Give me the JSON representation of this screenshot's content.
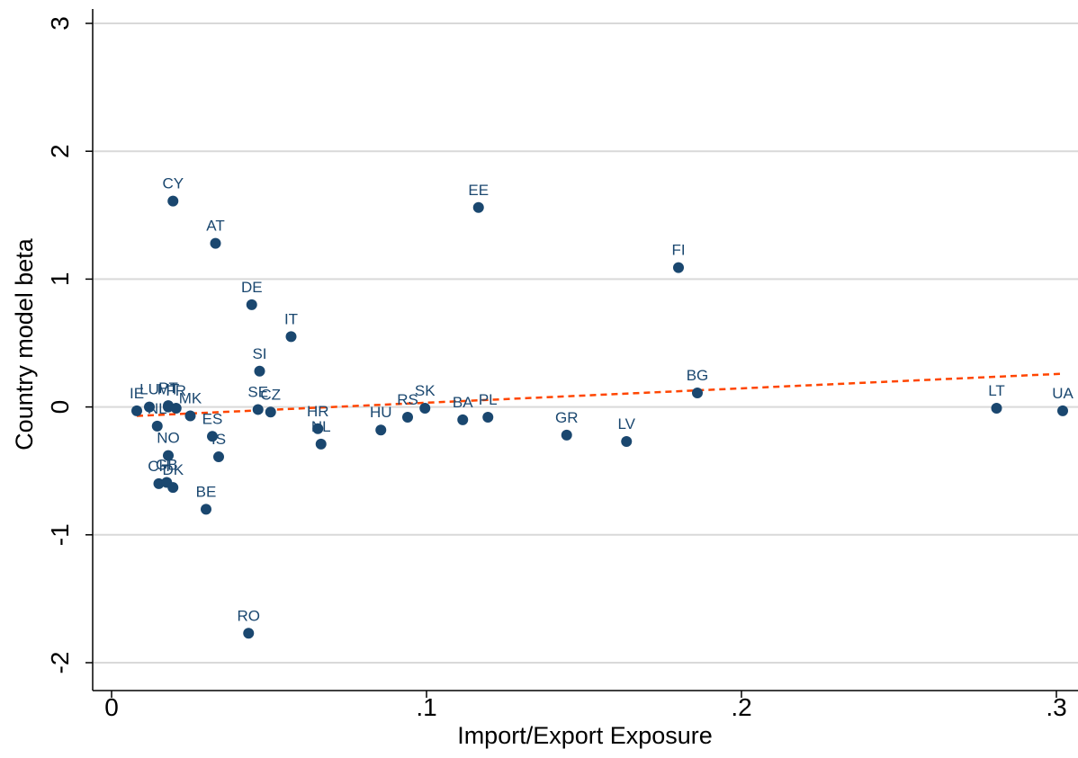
{
  "chart_data": {
    "type": "scatter",
    "title": "",
    "xlabel": "Import/Export Exposure",
    "ylabel": "Country model beta",
    "xlim": [
      0,
      0.3
    ],
    "ylim": [
      -2,
      3
    ],
    "x_ticks": [
      {
        "value": 0,
        "label": "0"
      },
      {
        "value": 0.1,
        "label": ".1"
      },
      {
        "value": 0.2,
        "label": ".2"
      },
      {
        "value": 0.3,
        "label": ".3"
      }
    ],
    "y_ticks": [
      {
        "value": -2,
        "label": "-2"
      },
      {
        "value": -1,
        "label": "-1"
      },
      {
        "value": 0,
        "label": "0"
      },
      {
        "value": 1,
        "label": "1"
      },
      {
        "value": 2,
        "label": "2"
      },
      {
        "value": 3,
        "label": "3"
      }
    ],
    "grid": "horizontal",
    "legend": "none",
    "colors": {
      "points": "#1a476f",
      "fit_line": "#ff4500",
      "grid": "#d9d9d9"
    },
    "points": [
      {
        "label": "IE",
        "x": 0.008,
        "y": -0.03
      },
      {
        "label": "LU",
        "x": 0.012,
        "y": 0.0
      },
      {
        "label": "NL",
        "x": 0.0145,
        "y": -0.15
      },
      {
        "label": "MT",
        "x": 0.018,
        "y": 0.0
      },
      {
        "label": "PT",
        "x": 0.018,
        "y": 0.01
      },
      {
        "label": "FR",
        "x": 0.0205,
        "y": -0.01
      },
      {
        "label": "MK",
        "x": 0.025,
        "y": -0.07
      },
      {
        "label": "NO",
        "x": 0.018,
        "y": -0.38
      },
      {
        "label": "CH",
        "x": 0.015,
        "y": -0.6
      },
      {
        "label": "GB",
        "x": 0.0175,
        "y": -0.59
      },
      {
        "label": "DK",
        "x": 0.0195,
        "y": -0.63
      },
      {
        "label": "CY",
        "x": 0.0195,
        "y": 1.61
      },
      {
        "label": "AT",
        "x": 0.033,
        "y": 1.28
      },
      {
        "label": "DE",
        "x": 0.0445,
        "y": 0.8
      },
      {
        "label": "SI",
        "x": 0.047,
        "y": 0.28
      },
      {
        "label": "IT",
        "x": 0.057,
        "y": 0.55
      },
      {
        "label": "SE",
        "x": 0.0465,
        "y": -0.02
      },
      {
        "label": "CZ",
        "x": 0.0505,
        "y": -0.04
      },
      {
        "label": "ES",
        "x": 0.032,
        "y": -0.23
      },
      {
        "label": "IS",
        "x": 0.034,
        "y": -0.39
      },
      {
        "label": "BE",
        "x": 0.03,
        "y": -0.8
      },
      {
        "label": "RO",
        "x": 0.0435,
        "y": -1.77
      },
      {
        "label": "HR",
        "x": 0.0655,
        "y": -0.17
      },
      {
        "label": "NL",
        "x": 0.0665,
        "y": -0.29
      },
      {
        "label": "HU",
        "x": 0.0855,
        "y": -0.18
      },
      {
        "label": "RS",
        "x": 0.094,
        "y": -0.08
      },
      {
        "label": "SK",
        "x": 0.0995,
        "y": -0.01
      },
      {
        "label": "BA",
        "x": 0.1115,
        "y": -0.1
      },
      {
        "label": "PL",
        "x": 0.1195,
        "y": -0.08
      },
      {
        "label": "EE",
        "x": 0.1165,
        "y": 1.56
      },
      {
        "label": "GR",
        "x": 0.1445,
        "y": -0.22
      },
      {
        "label": "LV",
        "x": 0.1635,
        "y": -0.27
      },
      {
        "label": "FI",
        "x": 0.18,
        "y": 1.09
      },
      {
        "label": "BG",
        "x": 0.186,
        "y": 0.11
      },
      {
        "label": "LT",
        "x": 0.281,
        "y": -0.01
      },
      {
        "label": "UA",
        "x": 0.302,
        "y": -0.03
      }
    ],
    "fit_line": {
      "x": [
        0.008,
        0.302
      ],
      "y": [
        -0.07,
        0.26
      ]
    }
  }
}
